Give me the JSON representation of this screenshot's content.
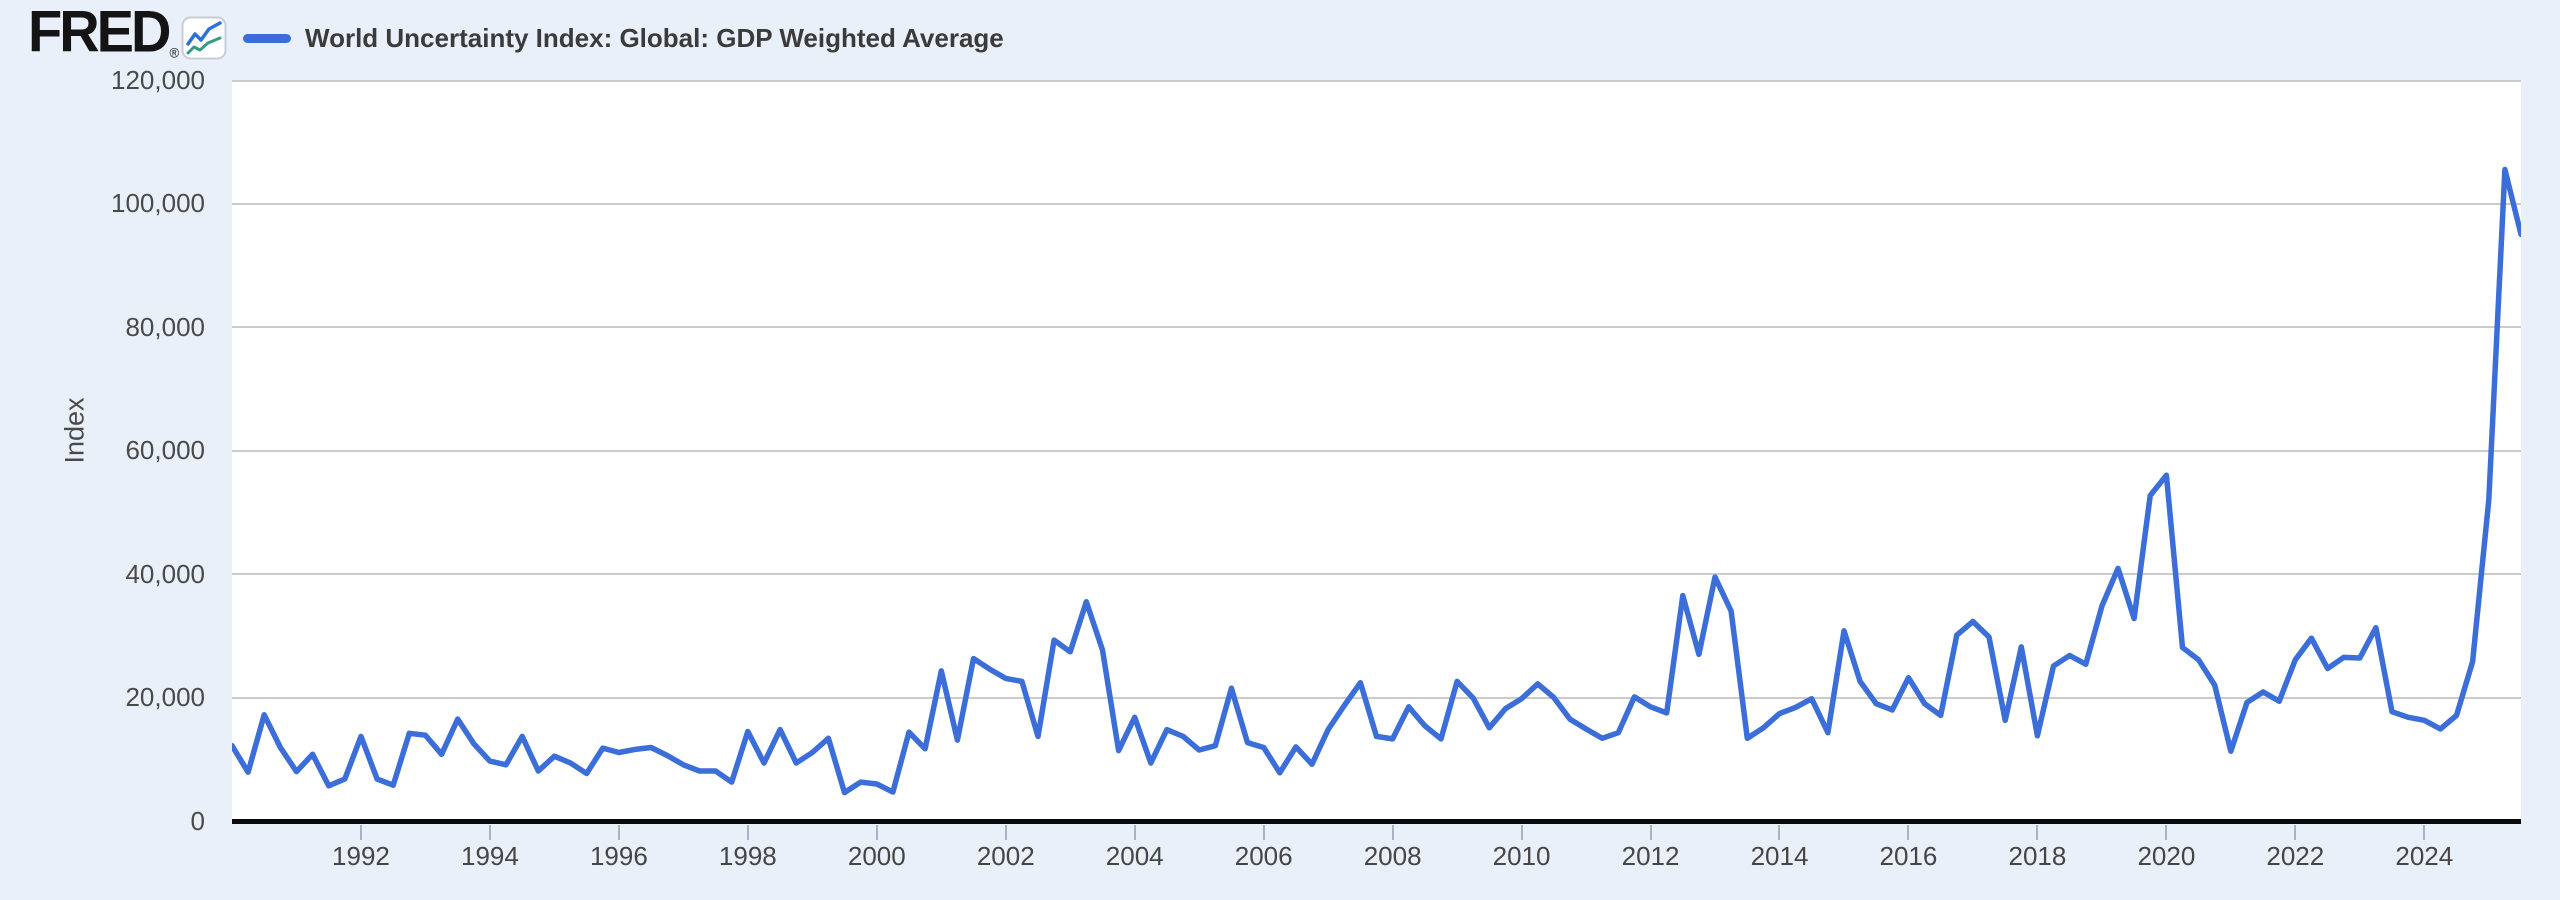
{
  "brand": {
    "logo_text": "FRED",
    "registered_mark": "®"
  },
  "legend": {
    "label": "World Uncertainty Index: Global: GDP Weighted Average"
  },
  "y_axis": {
    "title": "Index",
    "tick_labels": [
      "120,000",
      "100,000",
      "80,000",
      "60,000",
      "40,000",
      "20,000",
      "0"
    ]
  },
  "x_axis": {
    "tick_labels": [
      "1992",
      "1994",
      "1996",
      "1998",
      "2000",
      "2002",
      "2004",
      "2006",
      "2008",
      "2010",
      "2012",
      "2014",
      "2016",
      "2018",
      "2020",
      "2022",
      "2024"
    ]
  },
  "colors": {
    "page_background": "#eaf0f9",
    "plot_background": "#ffffff",
    "gridline": "#cbcbcb",
    "axis_line": "#0a0a0a",
    "series_line": "#3b6ed8",
    "tick_text": "#4a4a4a",
    "legend_text": "#3b3b3b",
    "icon_blue": "#2f6fe4",
    "icon_teal": "#349b85"
  },
  "chart_data": {
    "type": "line",
    "title": "World Uncertainty Index: Global: GDP Weighted Average",
    "ylabel": "Index",
    "xlabel": "",
    "legend_position": "top-left",
    "grid": "horizontal",
    "frequency": "quarterly",
    "x_start": "1990 Q1",
    "x_end": "2025 Q3",
    "ylim": [
      0,
      120000
    ],
    "ytick_step": 20000,
    "xtick_years": [
      1992,
      1994,
      1996,
      1998,
      2000,
      2002,
      2004,
      2006,
      2008,
      2010,
      2012,
      2014,
      2016,
      2018,
      2020,
      2022,
      2024
    ],
    "x_year_start": 1990,
    "series": [
      {
        "name": "World Uncertainty Index: Global: GDP Weighted Average",
        "color": "#3b6ed8",
        "values": [
          12200,
          7900,
          17200,
          11900,
          8000,
          10800,
          5700,
          6800,
          13700,
          6800,
          5800,
          14200,
          13900,
          10800,
          16500,
          12500,
          9700,
          9100,
          13700,
          8100,
          10500,
          9400,
          7700,
          11800,
          11100,
          11600,
          11900,
          10600,
          9100,
          8100,
          8100,
          6300,
          14500,
          9400,
          14800,
          9400,
          11100,
          13400,
          4600,
          6300,
          6000,
          4700,
          14400,
          11700,
          24300,
          13100,
          26300,
          24600,
          23100,
          22600,
          13700,
          29300,
          27400,
          35500,
          27700,
          11400,
          16800,
          9400,
          14800,
          13700,
          11500,
          12200,
          21500,
          12700,
          11900,
          7800,
          12000,
          9200,
          14800,
          18700,
          22400,
          13700,
          13300,
          18500,
          15400,
          13300,
          22600,
          19900,
          15100,
          18200,
          19800,
          22200,
          20000,
          16500,
          14900,
          13400,
          14300,
          20100,
          18500,
          17500,
          36500,
          27000,
          39500,
          34000,
          13400,
          15100,
          17400,
          18400,
          19800,
          14300,
          30800,
          22600,
          19000,
          18000,
          23200,
          19000,
          17100,
          30100,
          32300,
          29800,
          16300,
          28200,
          13800,
          25100,
          26800,
          25400,
          34800,
          40900,
          32800,
          52700,
          56000,
          28100,
          26100,
          22000,
          11300,
          19200,
          20900,
          19400,
          26100,
          29600,
          24700,
          26500,
          26400,
          31300,
          17700,
          16800,
          16300,
          14900,
          17100,
          25800,
          52000,
          105500,
          95000
        ]
      }
    ]
  }
}
